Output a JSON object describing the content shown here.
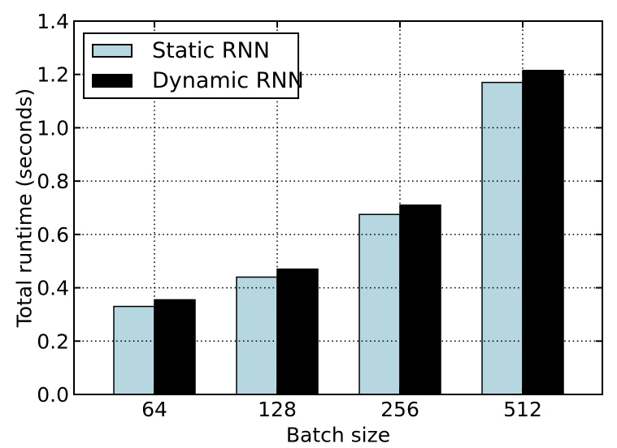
{
  "chart_data": {
    "type": "bar",
    "title": "",
    "xlabel": "Batch size",
    "ylabel": "Total runtime (seconds)",
    "categories": [
      "64",
      "128",
      "256",
      "512"
    ],
    "series": [
      {
        "name": "Static RNN",
        "color": "#b7d7e0",
        "edge_color": "#000000",
        "values": [
          0.33,
          0.44,
          0.675,
          1.17
        ]
      },
      {
        "name": "Dynamic RNN",
        "color": "#000000",
        "edge_color": "#000000",
        "values": [
          0.355,
          0.47,
          0.71,
          1.215
        ]
      }
    ],
    "ylim": [
      0.0,
      1.4
    ],
    "ytick_step": 0.2,
    "yticks": [
      "0.0",
      "0.2",
      "0.4",
      "0.6",
      "0.8",
      "1.0",
      "1.2",
      "1.4"
    ],
    "grid": {
      "visible": true,
      "style": "dotted",
      "color": "#000000",
      "axes": "both",
      "above_bars": true
    },
    "legend": {
      "position": "upper-left",
      "entries": [
        "Static RNN",
        "Dynamic RNN"
      ]
    },
    "axis_color": "#000000",
    "text_color": "#000000",
    "background": "#ffffff"
  }
}
